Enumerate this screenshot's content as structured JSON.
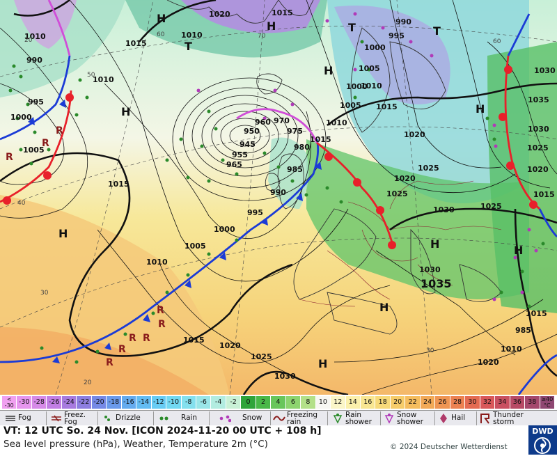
{
  "map": {
    "isobar_labels": [
      "1020",
      "1015",
      "1015",
      "1010",
      "H",
      "990",
      "995",
      "1000",
      "1005",
      "1010",
      "1015",
      "1000",
      "1005",
      "1010",
      "1015",
      "1025",
      "1030",
      "1020",
      "995",
      "1000",
      "1005",
      "1010",
      "1015",
      "1020",
      "1025",
      "1030",
      "960",
      "970",
      "975",
      "980",
      "985",
      "990",
      "950",
      "945",
      "955",
      "965",
      "H",
      "H",
      "H",
      "H",
      "H",
      "H",
      "H",
      "H",
      "T",
      "T",
      "T",
      "990",
      "995",
      "1000",
      "1005",
      "1010",
      "1015",
      "1020",
      "1025",
      "1030",
      "1035",
      "1030",
      "1025",
      "1020",
      "1015",
      "1010",
      "985",
      "1015",
      "1010",
      "1020",
      "1025",
      "1030",
      "1035",
      "H",
      "H"
    ],
    "lat_labels": [
      "60",
      "50",
      "40",
      "30",
      "20",
      "60",
      "70",
      "30",
      "20"
    ]
  },
  "colorbar": {
    "values": [
      "<\n-30",
      "-30",
      "-28",
      "-26",
      "-24",
      "-22",
      "-20",
      "-18",
      "-16",
      "-14",
      "-12",
      "-10",
      "-8",
      "-6",
      "-4",
      "-2",
      "0",
      "2",
      "4",
      "6",
      "8",
      "10",
      "12",
      "14",
      "16",
      "18",
      "20",
      "22",
      "24",
      "26",
      "28",
      "30",
      "32",
      "34",
      "36",
      "38",
      "≥40\n°C"
    ],
    "colors": [
      "#f0a0f0",
      "#e695ee",
      "#d68ae8",
      "#c27ee4",
      "#a77adf",
      "#8d7ee0",
      "#7589e6",
      "#6a9aeb",
      "#64abef",
      "#63bcf2",
      "#67ccf4",
      "#72d8f2",
      "#84e0ee",
      "#9ae6e8",
      "#b2ece0",
      "#c9f1d6",
      "#2fa43a",
      "#49b848",
      "#69c65b",
      "#8dd46f",
      "#b3e089",
      "#f7f7f3",
      "#fbf6c8",
      "#fbf0ab",
      "#f8e692",
      "#f7da7a",
      "#f6cc6a",
      "#f5bd5e",
      "#f2a957",
      "#ef9553",
      "#ec8151",
      "#e46b52",
      "#d9585a",
      "#c95060",
      "#b84a66",
      "#a4486c",
      "#8f4772"
    ]
  },
  "legend": {
    "items": [
      "Fog",
      "Freez.\nFog",
      "Drizzle",
      "Rain",
      "Snow",
      "Freezing\nrain",
      "Rain\nshower",
      "Snow\nshower",
      "Hail",
      "Thunder\nstorm"
    ]
  },
  "info": {
    "vt": "VT: 12 UTC So.  24 Nov. [ICON 2024-11-20  00 UTC + 108 h]",
    "desc": "Sea level pressure (hPa), Weather, Temperature 2m (°C)",
    "copyright": "© 2024 Deutscher Wetterdienst",
    "logo": "DWD"
  }
}
